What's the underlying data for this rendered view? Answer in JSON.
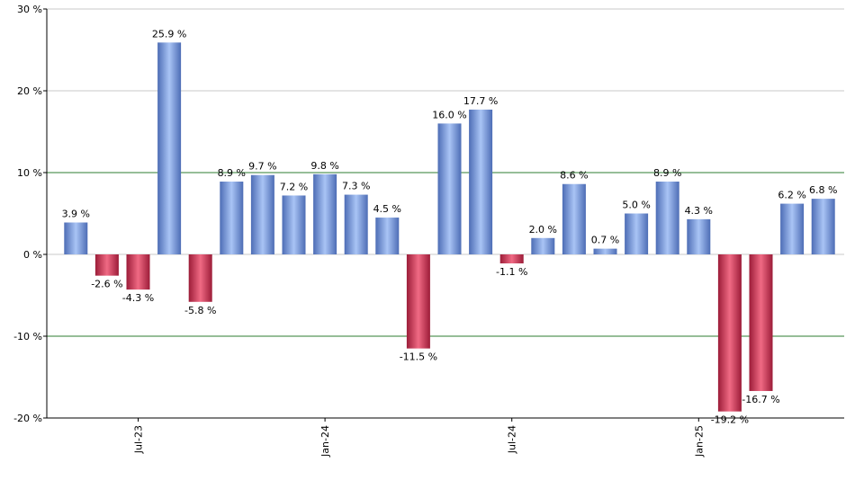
{
  "chart_data": {
    "type": "bar",
    "title": "",
    "xlabel": "",
    "ylabel": "",
    "ylim": [
      -20,
      30
    ],
    "yticks": [
      -20,
      -10,
      0,
      10,
      20,
      30
    ],
    "ytick_labels": [
      "-20 %",
      "-10 %",
      "0 %",
      "10 %",
      "20 %",
      "30 %"
    ],
    "reference_lines": [
      10,
      -10
    ],
    "value_suffix": " %",
    "colors": {
      "positive_light": "#a9c4f5",
      "positive_dark": "#4d6db5",
      "negative_light": "#f06a84",
      "negative_dark": "#9c1c38",
      "grid": "#c8c8c8",
      "reference": "#2e7d32",
      "axis": "#000000"
    },
    "x_tick_labels": [
      {
        "label": "Jul-23",
        "index": 2
      },
      {
        "label": "Jan-24",
        "index": 8
      },
      {
        "label": "Jul-24",
        "index": 14
      },
      {
        "label": "Jan-25",
        "index": 20
      }
    ],
    "values": [
      3.9,
      -2.6,
      -4.3,
      25.9,
      -5.8,
      8.9,
      9.7,
      7.2,
      9.8,
      7.3,
      4.5,
      -11.5,
      16.0,
      17.7,
      -1.1,
      2.0,
      8.6,
      0.7,
      5.0,
      8.9,
      4.3,
      -19.2,
      -16.7,
      6.2,
      6.8
    ],
    "labels": [
      "3.9 %",
      "-2.6 %",
      "-4.3 %",
      "25.9 %",
      "-5.8 %",
      "8.9 %",
      "9.7 %",
      "7.2 %",
      "9.8 %",
      "7.3 %",
      "4.5 %",
      "-11.5 %",
      "16.0 %",
      "17.7 %",
      "-1.1 %",
      "2.0 %",
      "8.6 %",
      "0.7 %",
      "5.0 %",
      "8.9 %",
      "4.3 %",
      "-19.2 %",
      "-16.7 %",
      "6.2 %",
      "6.8 %"
    ]
  }
}
